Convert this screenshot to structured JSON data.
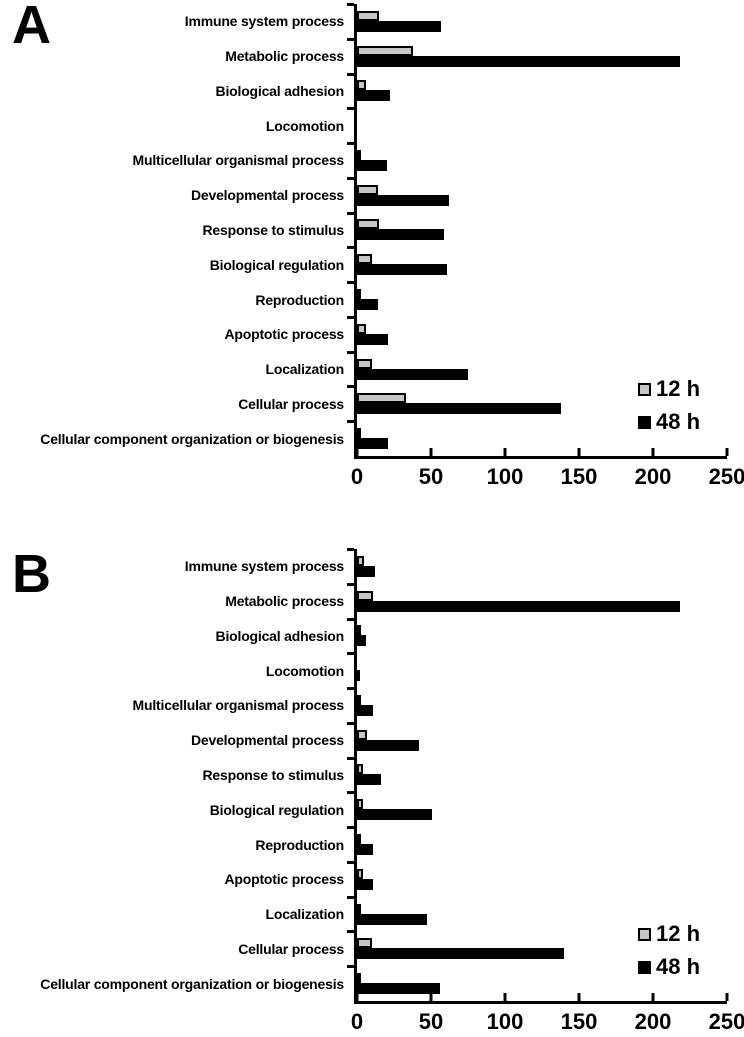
{
  "figure": {
    "panel_a_letter": "A",
    "panel_b_letter": "B",
    "accent_colors": {
      "series_12h": "#c6c6c6",
      "series_48h": "#000000",
      "axis": "#000000",
      "background": "#ffffff"
    }
  },
  "chart_data": [
    {
      "type": "bar",
      "orientation": "horizontal",
      "panel": "A",
      "title": "",
      "xlabel": "",
      "ylabel": "",
      "xlim": [
        0,
        250
      ],
      "xticks": [
        0,
        50,
        100,
        150,
        200,
        250
      ],
      "grid": false,
      "legend_position": "inside-bottom-right",
      "categories": [
        "Immune system process",
        "Metabolic process",
        "Biological adhesion",
        "Locomotion",
        "Multicellular organismal process",
        "Developmental process",
        "Response to stimulus",
        "Biological regulation",
        "Reproduction",
        "Apoptotic process",
        "Localization",
        "Cellular process",
        "Cellular component organization or biogenesis"
      ],
      "series": [
        {
          "name": "12 h",
          "color": "#c6c6c6",
          "values": [
            15,
            38,
            6,
            0,
            2,
            14,
            15,
            10,
            2,
            6,
            10,
            33,
            2
          ]
        },
        {
          "name": "48 h",
          "color": "#000000",
          "values": [
            57,
            218,
            22,
            0,
            20,
            62,
            59,
            61,
            14,
            21,
            75,
            138,
            21
          ]
        }
      ]
    },
    {
      "type": "bar",
      "orientation": "horizontal",
      "panel": "B",
      "title": "",
      "xlabel": "",
      "ylabel": "",
      "xlim": [
        0,
        250
      ],
      "xticks": [
        0,
        50,
        100,
        150,
        200,
        250
      ],
      "grid": false,
      "legend_position": "inside-bottom-right",
      "categories": [
        "Immune system process",
        "Metabolic process",
        "Biological adhesion",
        "Locomotion",
        "Multicellular organismal process",
        "Developmental process",
        "Response to stimulus",
        "Biological regulation",
        "Reproduction",
        "Apoptotic process",
        "Localization",
        "Cellular process",
        "Cellular component organization or biogenesis"
      ],
      "series": [
        {
          "name": "12 h",
          "color": "#c6c6c6",
          "values": [
            5,
            11,
            3,
            0,
            1,
            7,
            4,
            4,
            1,
            4,
            2,
            10,
            1
          ]
        },
        {
          "name": "48 h",
          "color": "#000000",
          "values": [
            12,
            218,
            6,
            2,
            11,
            42,
            16,
            51,
            11,
            11,
            47,
            140,
            56
          ]
        }
      ]
    }
  ]
}
